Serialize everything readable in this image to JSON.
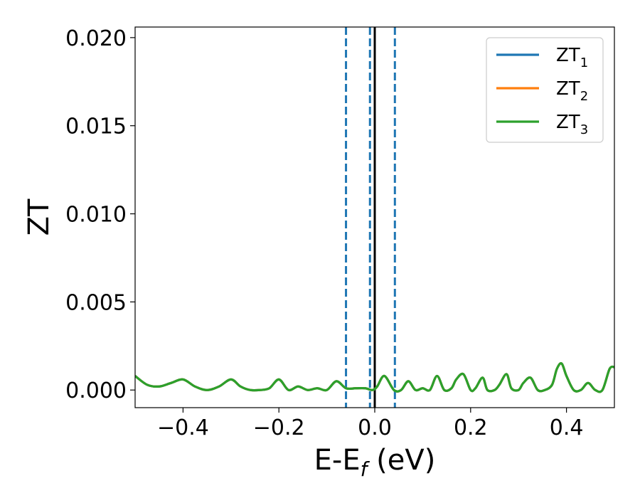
{
  "chart_data": {
    "type": "line",
    "xlabel": {
      "main": "E-E",
      "sub": "f",
      "tail": " (eV)"
    },
    "ylabel": "ZT",
    "xlim": [
      -0.5,
      0.5
    ],
    "ylim": [
      -0.001,
      0.0206
    ],
    "xticks": [
      -0.4,
      -0.2,
      0.0,
      0.2,
      0.4
    ],
    "xtick_labels": [
      "−0.4",
      "−0.2",
      "0.0",
      "0.2",
      "0.4"
    ],
    "yticks": [
      0.0,
      0.005,
      0.01,
      0.015,
      0.02
    ],
    "ytick_labels": [
      "0.000",
      "0.005",
      "0.010",
      "0.015",
      "0.020"
    ],
    "grid": false,
    "legend_position": "top-right",
    "series": [
      {
        "name": "ZT",
        "sub": "1",
        "color": "#1f77b4",
        "x": [
          -0.5,
          -0.475,
          -0.45,
          -0.425,
          -0.4,
          -0.375,
          -0.35,
          -0.325,
          -0.3,
          -0.28,
          -0.26,
          -0.24,
          -0.22,
          -0.2,
          -0.18,
          -0.16,
          -0.14,
          -0.12,
          -0.1,
          -0.08,
          -0.06,
          -0.04,
          -0.02,
          -0.005,
          0.005,
          0.02,
          0.04,
          0.055,
          0.07,
          0.085,
          0.1,
          0.115,
          0.13,
          0.145,
          0.16,
          0.17,
          0.185,
          0.2,
          0.21,
          0.225,
          0.235,
          0.25,
          0.26,
          0.275,
          0.285,
          0.3,
          0.31,
          0.325,
          0.34,
          0.355,
          0.37,
          0.38,
          0.39,
          0.4,
          0.415,
          0.43,
          0.445,
          0.46,
          0.475,
          0.49,
          0.5
        ],
        "y": [
          0.0008,
          0.0003,
          0.0002,
          0.0004,
          0.0006,
          0.0002,
          0.0,
          0.0002,
          0.0006,
          0.0002,
          0.0,
          0.0,
          0.0001,
          0.0006,
          0.0,
          0.0002,
          0.0,
          0.0001,
          0.0,
          0.0005,
          0.0001,
          0.0001,
          0.0001,
          0.0,
          0.0002,
          0.0008,
          0.0,
          0.0,
          0.0005,
          0.0,
          0.0001,
          0.0,
          0.0008,
          0.0,
          0.0001,
          0.0006,
          0.0009,
          0.0,
          0.0001,
          0.0007,
          0.0,
          0.0,
          0.0003,
          0.0009,
          0.0001,
          0.0,
          0.0004,
          0.0007,
          0.0,
          0.0,
          0.0003,
          0.0012,
          0.0015,
          0.0008,
          0.0,
          0.0,
          0.0004,
          0.0,
          0.0,
          0.0012,
          0.0013
        ]
      },
      {
        "name": "ZT",
        "sub": "2",
        "color": "#ff7f0e",
        "x": [
          -0.5,
          -0.475,
          -0.45,
          -0.425,
          -0.4,
          -0.375,
          -0.35,
          -0.325,
          -0.3,
          -0.28,
          -0.26,
          -0.24,
          -0.22,
          -0.2,
          -0.18,
          -0.16,
          -0.14,
          -0.12,
          -0.1,
          -0.08,
          -0.06,
          -0.04,
          -0.02,
          -0.005,
          0.005,
          0.02,
          0.04,
          0.055,
          0.07,
          0.085,
          0.1,
          0.115,
          0.13,
          0.145,
          0.16,
          0.17,
          0.185,
          0.2,
          0.21,
          0.225,
          0.235,
          0.25,
          0.26,
          0.275,
          0.285,
          0.3,
          0.31,
          0.325,
          0.34,
          0.355,
          0.37,
          0.38,
          0.39,
          0.4,
          0.415,
          0.43,
          0.445,
          0.46,
          0.475,
          0.49,
          0.5
        ],
        "y": [
          0.0008,
          0.0003,
          0.0002,
          0.0004,
          0.0006,
          0.0002,
          0.0,
          0.0002,
          0.0006,
          0.0002,
          0.0,
          0.0,
          0.0001,
          0.0006,
          0.0,
          0.0002,
          0.0,
          0.0001,
          0.0,
          0.0005,
          0.0001,
          0.0001,
          0.0001,
          0.0,
          0.0002,
          0.0008,
          0.0,
          0.0,
          0.0005,
          0.0,
          0.0001,
          0.0,
          0.0008,
          0.0,
          0.0001,
          0.0006,
          0.0009,
          0.0,
          0.0001,
          0.0007,
          0.0,
          0.0,
          0.0003,
          0.0009,
          0.0001,
          0.0,
          0.0004,
          0.0007,
          0.0,
          0.0,
          0.0003,
          0.0012,
          0.0015,
          0.0008,
          0.0,
          0.0,
          0.0004,
          0.0,
          0.0,
          0.0012,
          0.0013
        ]
      },
      {
        "name": "ZT",
        "sub": "3",
        "color": "#2ca02c",
        "x": [
          -0.5,
          -0.475,
          -0.45,
          -0.425,
          -0.4,
          -0.375,
          -0.35,
          -0.325,
          -0.3,
          -0.28,
          -0.26,
          -0.24,
          -0.22,
          -0.2,
          -0.18,
          -0.16,
          -0.14,
          -0.12,
          -0.1,
          -0.08,
          -0.06,
          -0.04,
          -0.02,
          -0.005,
          0.005,
          0.02,
          0.04,
          0.055,
          0.07,
          0.085,
          0.1,
          0.115,
          0.13,
          0.145,
          0.16,
          0.17,
          0.185,
          0.2,
          0.21,
          0.225,
          0.235,
          0.25,
          0.26,
          0.275,
          0.285,
          0.3,
          0.31,
          0.325,
          0.34,
          0.355,
          0.37,
          0.38,
          0.39,
          0.4,
          0.415,
          0.43,
          0.445,
          0.46,
          0.475,
          0.49,
          0.5
        ],
        "y": [
          0.0008,
          0.0003,
          0.0002,
          0.0004,
          0.0006,
          0.0002,
          0.0,
          0.0002,
          0.0006,
          0.0002,
          0.0,
          0.0,
          0.0001,
          0.0006,
          0.0,
          0.0002,
          0.0,
          0.0001,
          0.0,
          0.0005,
          0.0001,
          0.0001,
          0.0001,
          0.0,
          0.0002,
          0.0008,
          0.0,
          0.0,
          0.0005,
          0.0,
          0.0001,
          0.0,
          0.0008,
          0.0,
          0.0001,
          0.0006,
          0.0009,
          0.0,
          0.0001,
          0.0007,
          0.0,
          0.0,
          0.0003,
          0.0009,
          0.0001,
          0.0,
          0.0004,
          0.0007,
          0.0,
          0.0,
          0.0003,
          0.0012,
          0.0015,
          0.0008,
          0.0,
          0.0,
          0.0004,
          0.0,
          0.0,
          0.0012,
          0.0013
        ]
      }
    ],
    "vertical_lines": [
      {
        "x": -0.06,
        "style": "dashed",
        "color": "#1f77b4"
      },
      {
        "x": -0.01,
        "style": "dashed",
        "color": "#1f77b4"
      },
      {
        "x": 0.042,
        "style": "dashed",
        "color": "#1f77b4"
      },
      {
        "x": 0.0,
        "style": "solid",
        "color": "#000000"
      }
    ]
  }
}
